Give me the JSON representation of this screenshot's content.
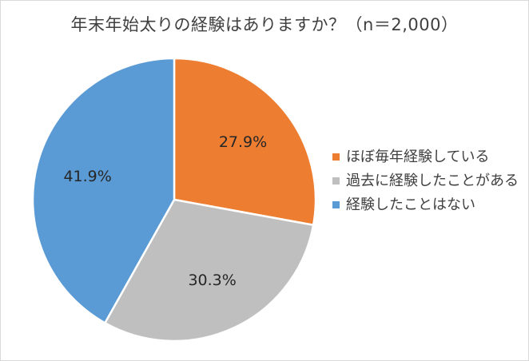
{
  "chart_data": {
    "type": "pie",
    "title": "年末年始太りの経験はありますか？（n＝2,000）",
    "categories": [
      "ほぼ毎年経験している",
      "過去に経験したことがある",
      "経験したことはない"
    ],
    "values": [
      27.9,
      30.3,
      41.9
    ],
    "data_labels": [
      "27.9%",
      "30.3%",
      "41.9%"
    ],
    "colors": [
      "#ed7d31",
      "#bfbfbf",
      "#5b9bd5"
    ],
    "legend_position": "right"
  }
}
